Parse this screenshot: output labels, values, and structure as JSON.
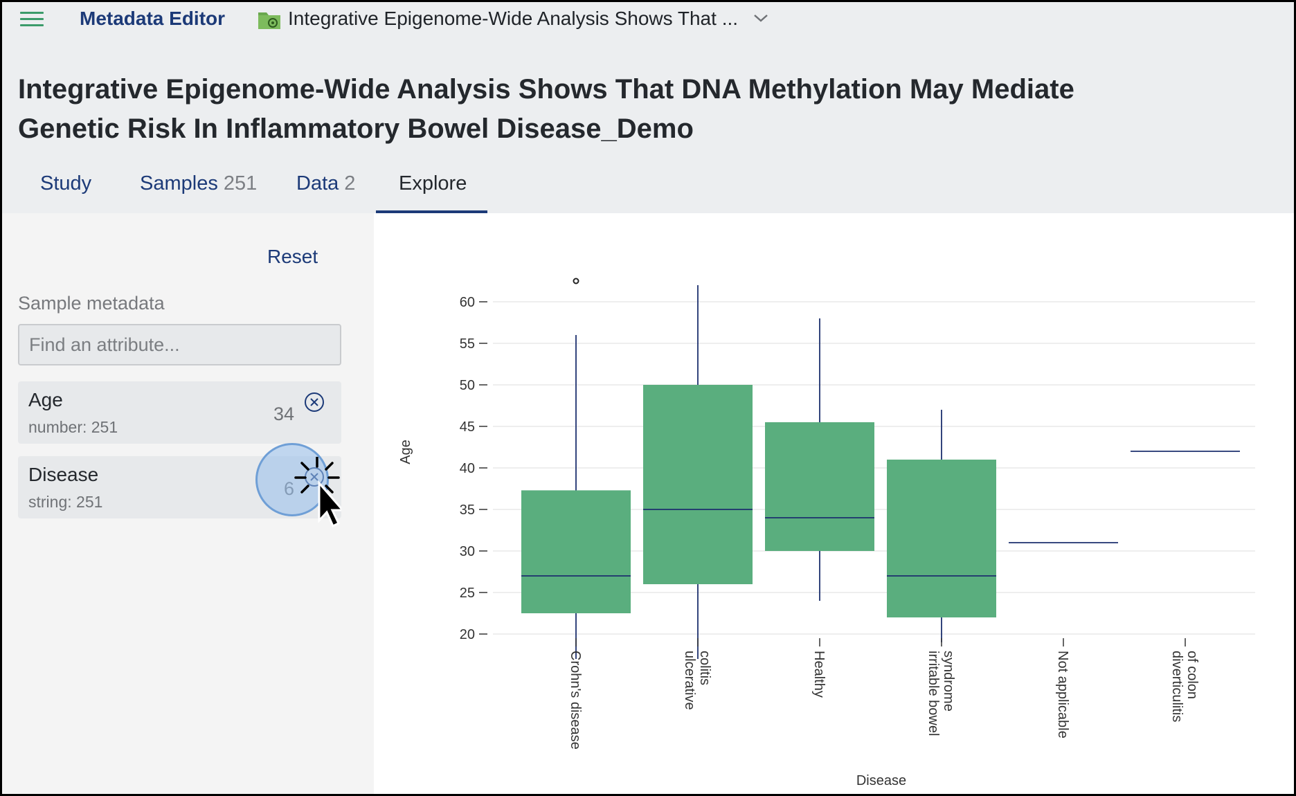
{
  "header": {
    "app_title": "Metadata Editor",
    "study_selector": "Integrative Epigenome-Wide Analysis Shows That ...",
    "icons": [
      "hamburger-menu-icon",
      "folder-icon",
      "chevron-down-icon"
    ]
  },
  "page_title": "Integrative Epigenome-Wide Analysis Shows That DNA Methylation May Mediate Genetic Risk In Inflammatory Bowel Disease_Demo",
  "tabs": [
    {
      "label": "Study",
      "count": ""
    },
    {
      "label": "Samples",
      "count": "251"
    },
    {
      "label": "Data",
      "count": "2"
    },
    {
      "label": "Explore",
      "count": "",
      "active": true
    }
  ],
  "left_panel": {
    "reset_label": "Reset",
    "section_label": "Sample metadata",
    "search_placeholder": "Find an attribute...",
    "attributes": [
      {
        "name": "Age",
        "type": "number: 251",
        "count": "34"
      },
      {
        "name": "Disease",
        "type": "string: 251",
        "count": "6"
      }
    ]
  },
  "colors": {
    "accent": "#1c3a78",
    "box_fill": "#5aae7e",
    "median_line": "#1c2f6e",
    "hamburger": "#3b9b6a",
    "header_bg": "#eceef0",
    "sidebar_bg": "#f4f4f4"
  },
  "chart_data": {
    "type": "box",
    "xlabel": "Disease",
    "ylabel": "Age",
    "ylim": [
      19,
      63
    ],
    "yticks": [
      20,
      25,
      30,
      35,
      40,
      45,
      50,
      55,
      60
    ],
    "grid": true,
    "categories": [
      {
        "label": [
          "Crohn's disease"
        ],
        "min": 17,
        "q1": 22.5,
        "median": 27,
        "q3": 37.3,
        "max": 56,
        "outliers": [
          63
        ]
      },
      {
        "label": [
          "ulcerative",
          "colitis"
        ],
        "min": 17,
        "q1": 26,
        "median": 35,
        "q3": 50,
        "max": 62,
        "outliers": []
      },
      {
        "label": [
          "Healthy"
        ],
        "min": 24,
        "q1": 30,
        "median": 34,
        "q3": 45.5,
        "max": 58,
        "outliers": []
      },
      {
        "label": [
          "irritable bowel",
          "syndrome"
        ],
        "min": 19,
        "q1": 22,
        "median": 27,
        "q3": 41,
        "max": 47,
        "outliers": []
      },
      {
        "label": [
          "Not applicable"
        ],
        "min": 31,
        "q1": 31,
        "median": 31,
        "q3": 31,
        "max": 31,
        "outliers": []
      },
      {
        "label": [
          "diverticulitis",
          "of colon"
        ],
        "min": 42,
        "q1": 42,
        "median": 42,
        "q3": 42,
        "max": 42,
        "outliers": []
      }
    ]
  }
}
